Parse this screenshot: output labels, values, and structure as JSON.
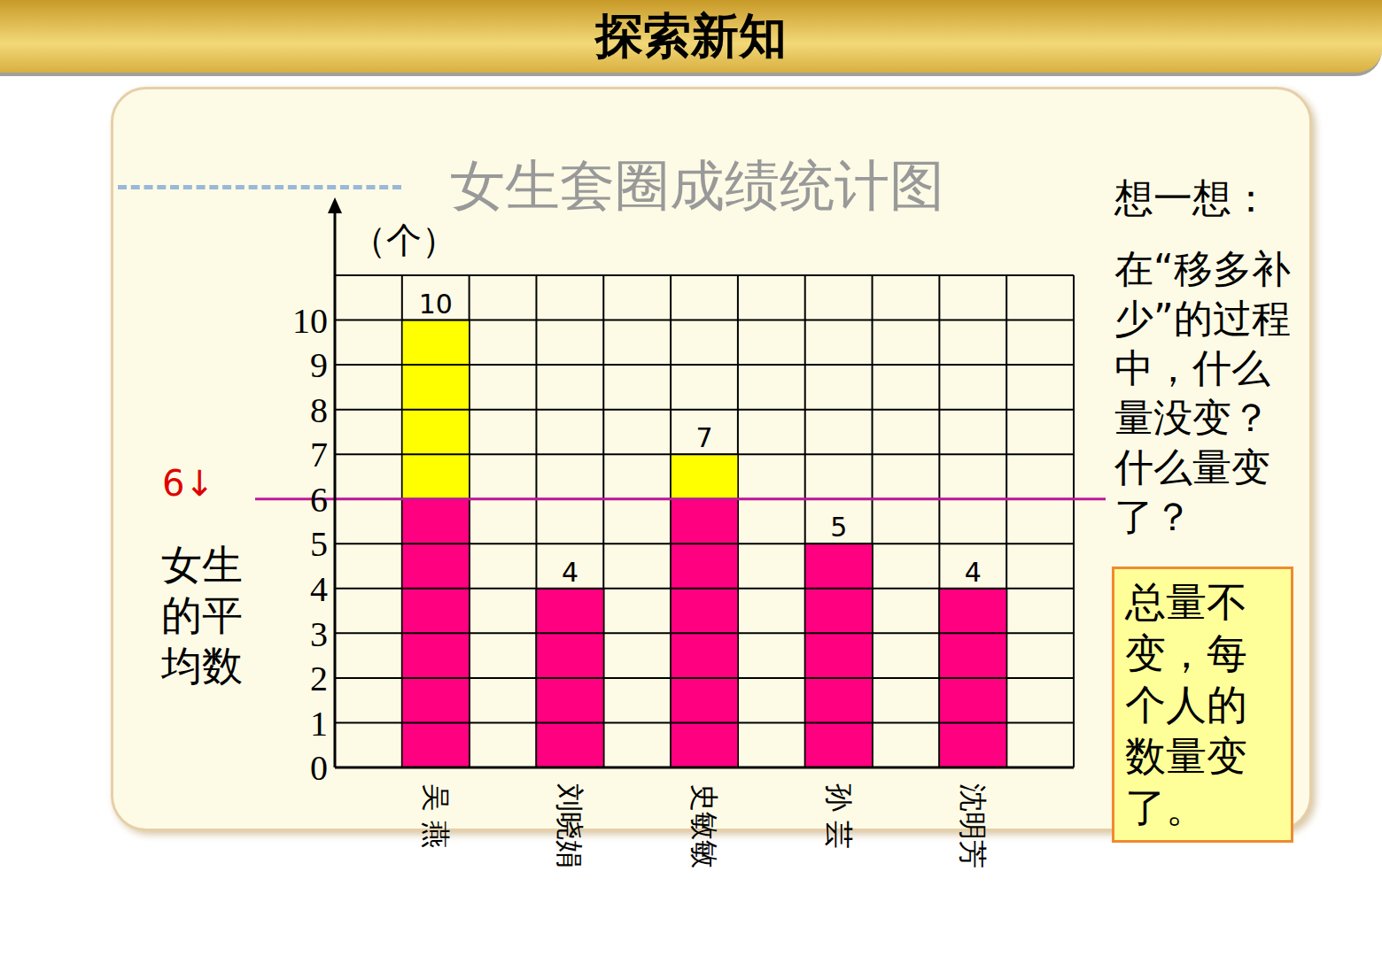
{
  "header": "探索新知",
  "chart_data": {
    "type": "bar",
    "title": "女生套圈成绩统计图",
    "y_label": "（个）",
    "categories": [
      null,
      "吴 燕",
      null,
      "刘晓娟",
      null,
      "史敏敏",
      null,
      "孙 芸",
      null,
      "沈明芳",
      null
    ],
    "values": [
      null,
      10,
      null,
      4,
      null,
      7,
      null,
      5,
      null,
      4,
      null
    ],
    "color": "#ff0080",
    "ylim": [
      0,
      11
    ],
    "yticks": [
      0,
      1,
      2,
      3,
      4,
      5,
      6,
      7,
      8,
      9,
      10
    ],
    "grid": true,
    "data_labels": true,
    "annotations": [
      {
        "type": "mean_line",
        "y": 6,
        "label": "6↓",
        "text": "女生的平均数",
        "color": "#c0189a",
        "fill_above": "#ffff00"
      }
    ]
  },
  "question": {
    "title": "想一想：",
    "text": "在“移多补少”的过程中，什么量没变？什么量变了？"
  },
  "answer": "总量不变，每个人的数量变了。"
}
